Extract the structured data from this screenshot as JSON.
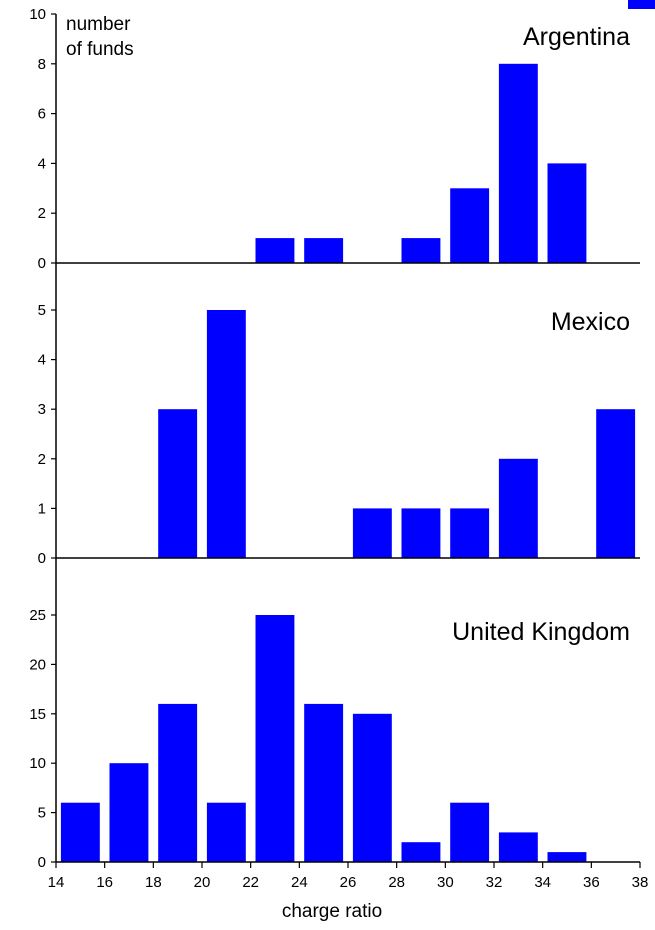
{
  "chart_data": [
    {
      "type": "bar",
      "title": "Argentina",
      "ylabel": "number\nof funds",
      "xlabel": "",
      "ylim": [
        0,
        10
      ],
      "yticks": [
        0,
        2,
        4,
        6,
        8,
        10
      ],
      "x": [
        23,
        25,
        29,
        31,
        33,
        35
      ],
      "values": [
        1,
        1,
        1,
        3,
        8,
        4
      ],
      "bar_color": "#0000ff"
    },
    {
      "type": "bar",
      "title": "Mexico",
      "ylabel": "",
      "xlabel": "",
      "ylim": [
        0,
        6
      ],
      "yticks": [
        0,
        1,
        2,
        3,
        4,
        5
      ],
      "x": [
        19,
        21,
        27,
        29,
        31,
        33,
        37
      ],
      "values": [
        3,
        5,
        1,
        1,
        1,
        2,
        3
      ],
      "bar_color": "#0000ff"
    },
    {
      "type": "bar",
      "title": "United Kingdom",
      "ylabel": "",
      "xlabel": "charge ratio",
      "ylim": [
        0,
        30
      ],
      "yticks": [
        0,
        5,
        10,
        15,
        20,
        25
      ],
      "x": [
        15,
        17,
        19,
        21,
        23,
        25,
        27,
        29,
        31,
        33,
        35
      ],
      "values": [
        6,
        10,
        16,
        6,
        25,
        16,
        15,
        2,
        6,
        3,
        1
      ],
      "bar_color": "#0000ff"
    }
  ],
  "x_axis": {
    "xlim": [
      14,
      38
    ],
    "xticks": [
      "14",
      "16",
      "18",
      "20",
      "22",
      "24",
      "26",
      "28",
      "30",
      "32",
      "34",
      "36",
      "38"
    ]
  },
  "corner_mark_color": "#0000ff"
}
